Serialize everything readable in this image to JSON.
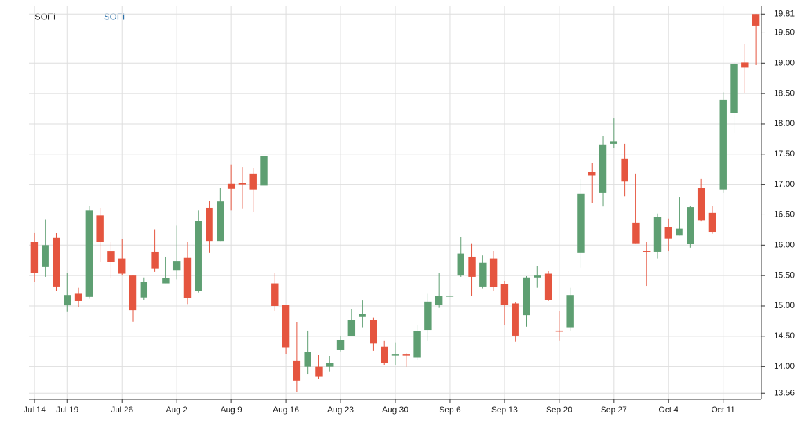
{
  "chart_data": {
    "type": "candlestick",
    "title": "SOFI",
    "categories": [
      "Jul 14",
      null,
      null,
      "Jul 19",
      null,
      null,
      null,
      null,
      "Jul 26",
      null,
      null,
      null,
      null,
      "Aug 2",
      null,
      null,
      null,
      null,
      "Aug 9",
      null,
      null,
      null,
      null,
      "Aug 16",
      null,
      null,
      null,
      null,
      "Aug 23",
      null,
      null,
      null,
      null,
      "Aug 30",
      null,
      null,
      null,
      null,
      "Sep 6",
      null,
      null,
      null,
      null,
      "Sep 13",
      null,
      null,
      null,
      null,
      "Sep 20",
      null,
      null,
      null,
      null,
      "Sep 27",
      null,
      null,
      null,
      null,
      "Oct 4",
      null,
      null,
      null,
      null,
      "Oct 11",
      null,
      null,
      null
    ],
    "series": [
      {
        "name": "SOFI",
        "up_color": "#5e9f72",
        "down_color": "#e5553f",
        "open": [
          16.06,
          15.64,
          16.12,
          15.01,
          15.2,
          15.15,
          16.49,
          15.9,
          15.78,
          15.5,
          15.14,
          15.89,
          15.37,
          15.59,
          15.79,
          15.24,
          16.62,
          16.07,
          17.01,
          17.03,
          17.18,
          16.98,
          15.37,
          15.02,
          14.1,
          14.0,
          14.0,
          14.0,
          14.27,
          14.5,
          14.82,
          14.77,
          14.33,
          14.19,
          14.2,
          14.15,
          14.6,
          15.02,
          15.17,
          15.5,
          15.81,
          15.32,
          15.78,
          15.36,
          15.04,
          14.85,
          15.47,
          15.53,
          14.59,
          14.64,
          15.88,
          17.21,
          16.86,
          17.67,
          17.42,
          16.37,
          15.91,
          15.89,
          16.3,
          16.16,
          16.02,
          16.95,
          16.53,
          16.92,
          18.18,
          19.01,
          19.81
        ],
        "high": [
          16.21,
          16.42,
          16.2,
          15.54,
          15.3,
          16.65,
          16.62,
          16.06,
          16.1,
          15.5,
          15.47,
          16.26,
          15.81,
          16.33,
          16.05,
          16.57,
          16.73,
          16.95,
          17.33,
          17.28,
          17.27,
          17.52,
          15.54,
          15.02,
          14.73,
          14.59,
          14.19,
          14.17,
          14.5,
          14.95,
          15.09,
          14.81,
          14.42,
          14.4,
          14.22,
          14.69,
          15.2,
          15.54,
          15.17,
          16.14,
          16.03,
          15.83,
          15.91,
          15.41,
          15.06,
          15.49,
          15.66,
          15.58,
          14.92,
          15.3,
          17.1,
          17.35,
          17.8,
          18.09,
          17.67,
          17.18,
          16.06,
          16.52,
          16.44,
          16.79,
          16.65,
          17.1,
          16.65,
          18.52,
          19.03,
          19.32,
          19.81
        ],
        "low": [
          15.39,
          15.48,
          15.25,
          14.9,
          14.98,
          15.12,
          15.73,
          15.46,
          15.5,
          14.74,
          15.1,
          15.56,
          15.37,
          15.44,
          15.03,
          15.22,
          15.88,
          16.07,
          16.57,
          16.6,
          16.54,
          16.76,
          14.91,
          14.21,
          13.58,
          13.87,
          13.8,
          13.92,
          14.25,
          14.5,
          14.64,
          14.26,
          14.03,
          14.03,
          14.0,
          14.11,
          14.42,
          14.97,
          15.17,
          15.48,
          15.16,
          15.29,
          15.25,
          14.68,
          14.41,
          14.66,
          15.3,
          15.08,
          14.42,
          14.59,
          15.63,
          16.69,
          16.64,
          17.6,
          16.81,
          16.03,
          15.33,
          15.78,
          15.9,
          16.16,
          15.96,
          16.39,
          16.19,
          16.86,
          17.85,
          18.51,
          18.97
        ],
        "close": [
          15.54,
          16.0,
          15.32,
          15.18,
          15.08,
          16.57,
          16.06,
          15.72,
          15.53,
          14.93,
          15.39,
          15.62,
          15.46,
          15.74,
          15.13,
          16.4,
          16.07,
          16.72,
          16.93,
          17.0,
          16.92,
          17.47,
          15.0,
          14.31,
          13.77,
          14.24,
          13.83,
          14.06,
          14.44,
          14.77,
          14.87,
          14.38,
          14.06,
          14.2,
          14.19,
          14.58,
          15.07,
          15.17,
          15.17,
          15.86,
          15.48,
          15.71,
          15.31,
          15.02,
          14.51,
          15.47,
          15.5,
          15.1,
          14.58,
          15.18,
          16.85,
          17.15,
          17.66,
          17.71,
          17.05,
          16.03,
          15.89,
          16.46,
          16.11,
          16.27,
          16.63,
          16.41,
          16.22,
          18.4,
          18.99,
          18.93,
          19.62
        ]
      }
    ],
    "ylim": [
      13.46,
      19.95
    ],
    "yticks": [
      13.56,
      {
        "value": 14,
        "label": "14.00"
      },
      {
        "value": 14.5,
        "label": "14.50"
      },
      {
        "value": 15,
        "label": "15.00"
      },
      {
        "value": 15.5,
        "label": "15.50"
      },
      {
        "value": 16,
        "label": "16.00"
      },
      {
        "value": 16.5,
        "label": "16.50"
      },
      {
        "value": 17,
        "label": "17.00"
      },
      {
        "value": 17.5,
        "label": "17.50"
      },
      {
        "value": 18,
        "label": "18.00"
      },
      {
        "value": 18.5,
        "label": "18.50"
      },
      {
        "value": 19,
        "label": "19.00"
      },
      {
        "value": 19.5,
        "label": "19.50"
      },
      19.81
    ],
    "grid": true
  }
}
